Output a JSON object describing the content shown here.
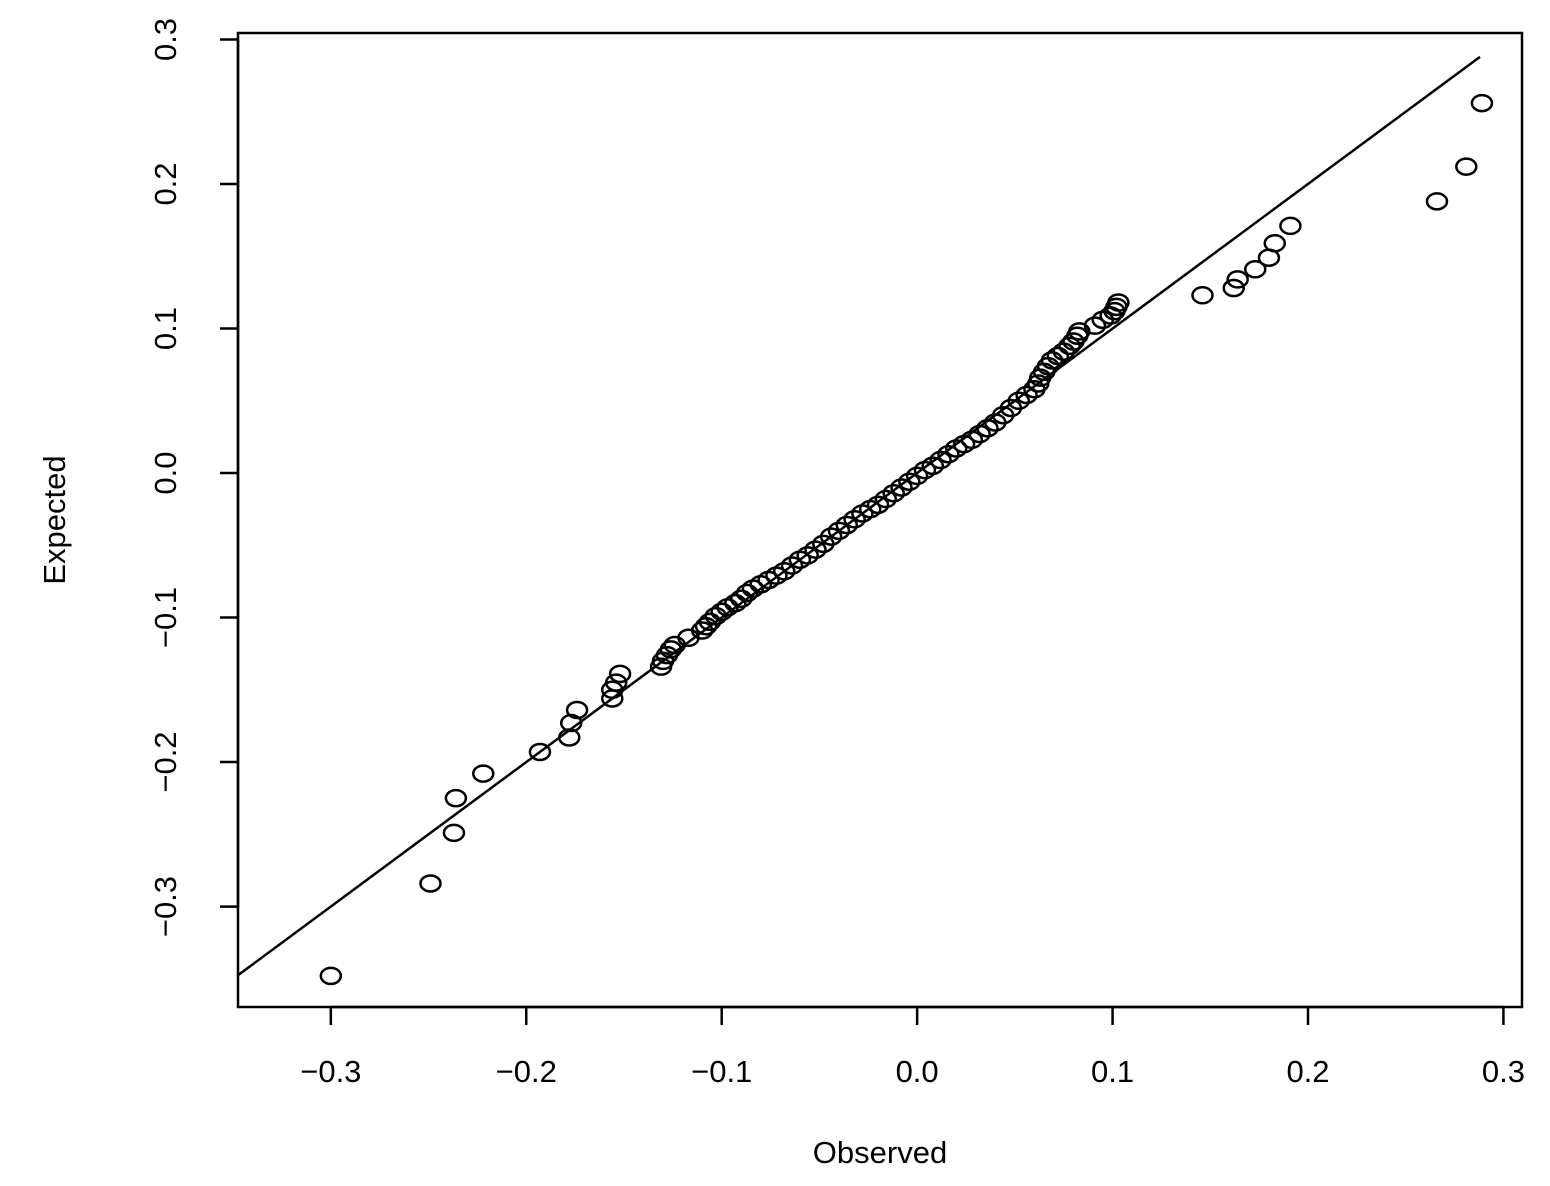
{
  "chart_data": {
    "type": "scatter",
    "title": "",
    "xlabel": "Observed",
    "ylabel": "Expected",
    "xlim": [
      -0.3475,
      0.3095
    ],
    "ylim": [
      -0.3695,
      0.3045
    ],
    "xticks": [
      -0.3,
      -0.2,
      -0.1,
      0.0,
      0.1,
      0.2,
      0.3
    ],
    "xtick_labels": [
      "−0.3",
      "−0.2",
      "−0.1",
      "0.0",
      "0.1",
      "0.2",
      "0.3"
    ],
    "yticks": [
      -0.3,
      -0.2,
      -0.1,
      0.0,
      0.1,
      0.2,
      0.3
    ],
    "ytick_labels": [
      "−0.3",
      "−0.2",
      "−0.1",
      "0.0",
      "0.1",
      "0.2",
      "0.3"
    ],
    "grid": false,
    "legend": "none",
    "marker": "open-circle",
    "reference_line": {
      "x": [
        -0.348,
        0.288
      ],
      "y": [
        -0.348,
        0.288
      ]
    },
    "points": [
      [
        -0.3,
        -0.348
      ],
      [
        -0.249,
        -0.284
      ],
      [
        -0.237,
        -0.249
      ],
      [
        -0.236,
        -0.225
      ],
      [
        -0.222,
        -0.208
      ],
      [
        -0.193,
        -0.193
      ],
      [
        -0.178,
        -0.183
      ],
      [
        -0.177,
        -0.173
      ],
      [
        -0.174,
        -0.164
      ],
      [
        -0.156,
        -0.156
      ],
      [
        -0.156,
        -0.15
      ],
      [
        -0.154,
        -0.145
      ],
      [
        -0.152,
        -0.139
      ],
      [
        -0.131,
        -0.134
      ],
      [
        -0.13,
        -0.13
      ],
      [
        -0.128,
        -0.126
      ],
      [
        -0.126,
        -0.122
      ],
      [
        -0.124,
        -0.119
      ],
      [
        -0.117,
        -0.114
      ],
      [
        -0.11,
        -0.109
      ],
      [
        -0.108,
        -0.106
      ],
      [
        -0.106,
        -0.103
      ],
      [
        -0.103,
        -0.099
      ],
      [
        -0.1,
        -0.096
      ],
      [
        -0.097,
        -0.093
      ],
      [
        -0.093,
        -0.09
      ],
      [
        -0.09,
        -0.087
      ],
      [
        -0.087,
        -0.083
      ],
      [
        -0.084,
        -0.08
      ],
      [
        -0.08,
        -0.077
      ],
      [
        -0.076,
        -0.074
      ],
      [
        -0.072,
        -0.071
      ],
      [
        -0.068,
        -0.068
      ],
      [
        -0.064,
        -0.064
      ],
      [
        -0.06,
        -0.06
      ],
      [
        -0.056,
        -0.057
      ],
      [
        -0.052,
        -0.053
      ],
      [
        -0.048,
        -0.049
      ],
      [
        -0.044,
        -0.044
      ],
      [
        -0.04,
        -0.04
      ],
      [
        -0.036,
        -0.036
      ],
      [
        -0.032,
        -0.032
      ],
      [
        -0.028,
        -0.028
      ],
      [
        -0.024,
        -0.025
      ],
      [
        -0.02,
        -0.022
      ],
      [
        -0.016,
        -0.018
      ],
      [
        -0.012,
        -0.014
      ],
      [
        -0.008,
        -0.01
      ],
      [
        -0.004,
        -0.006
      ],
      [
        0.0,
        -0.002
      ],
      [
        0.004,
        0.002
      ],
      [
        0.008,
        0.005
      ],
      [
        0.012,
        0.009
      ],
      [
        0.016,
        0.013
      ],
      [
        0.02,
        0.017
      ],
      [
        0.024,
        0.02
      ],
      [
        0.028,
        0.023
      ],
      [
        0.032,
        0.027
      ],
      [
        0.036,
        0.031
      ],
      [
        0.04,
        0.035
      ],
      [
        0.044,
        0.04
      ],
      [
        0.048,
        0.045
      ],
      [
        0.052,
        0.05
      ],
      [
        0.056,
        0.054
      ],
      [
        0.06,
        0.058
      ],
      [
        0.062,
        0.062
      ],
      [
        0.063,
        0.066
      ],
      [
        0.065,
        0.07
      ],
      [
        0.067,
        0.074
      ],
      [
        0.069,
        0.078
      ],
      [
        0.072,
        0.081
      ],
      [
        0.075,
        0.084
      ],
      [
        0.078,
        0.088
      ],
      [
        0.08,
        0.091
      ],
      [
        0.082,
        0.095
      ],
      [
        0.083,
        0.098
      ],
      [
        0.091,
        0.102
      ],
      [
        0.095,
        0.106
      ],
      [
        0.099,
        0.109
      ],
      [
        0.101,
        0.112
      ],
      [
        0.102,
        0.115
      ],
      [
        0.103,
        0.118
      ],
      [
        0.146,
        0.123
      ],
      [
        0.162,
        0.128
      ],
      [
        0.164,
        0.134
      ],
      [
        0.173,
        0.141
      ],
      [
        0.18,
        0.149
      ],
      [
        0.183,
        0.159
      ],
      [
        0.191,
        0.171
      ],
      [
        0.266,
        0.188
      ],
      [
        0.281,
        0.212
      ],
      [
        0.289,
        0.256
      ]
    ]
  }
}
